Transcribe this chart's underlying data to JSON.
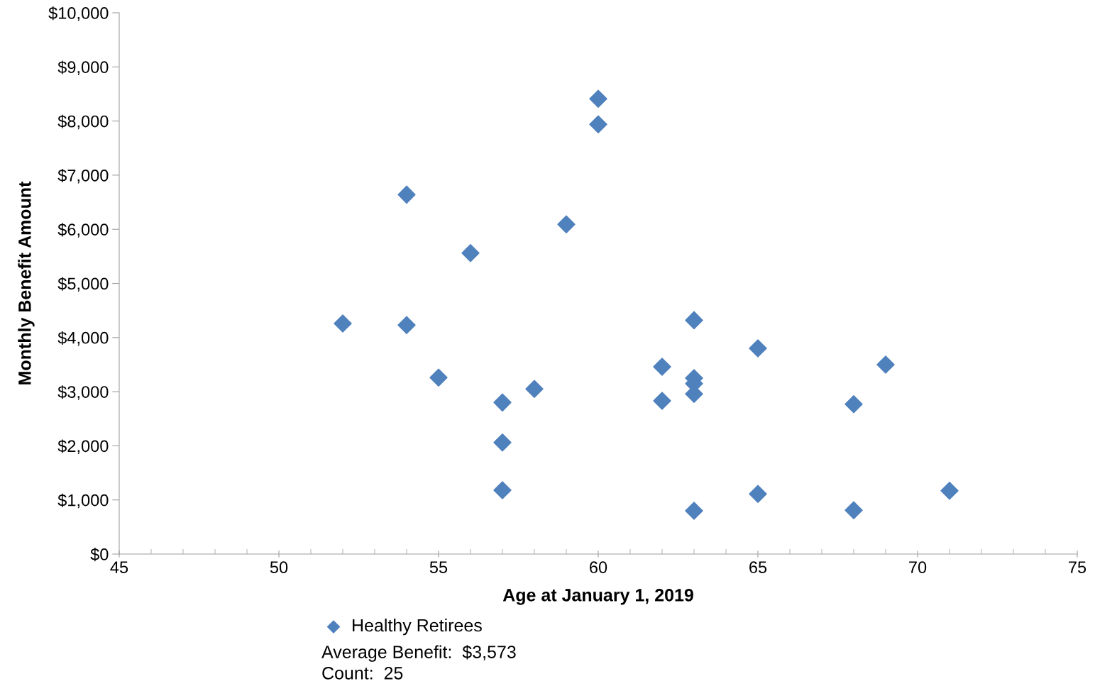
{
  "chart_data": {
    "type": "scatter",
    "xlabel": "Age at January 1, 2019",
    "ylabel": "Monthly Benefit Amount",
    "series": [
      {
        "name": "Healthy Retirees",
        "color": "#4f81bd",
        "marker": "diamond",
        "x": [
          52,
          54,
          54,
          55,
          56,
          57,
          57,
          57,
          58,
          59,
          60,
          60,
          62,
          62,
          63,
          63,
          63,
          63,
          63,
          65,
          65,
          68,
          68,
          69,
          71
        ],
        "values": [
          4260,
          6640,
          4230,
          3260,
          5560,
          2800,
          2060,
          1180,
          3050,
          6090,
          8410,
          7940,
          3460,
          2830,
          4320,
          3250,
          3150,
          2960,
          800,
          3800,
          1110,
          2770,
          810,
          3500,
          1170
        ]
      }
    ],
    "xlim": [
      45,
      75
    ],
    "xticks": [
      45,
      50,
      55,
      60,
      65,
      70,
      75
    ],
    "ylim": [
      0,
      10000
    ],
    "yticks": [
      {
        "value": 0,
        "label": "$0"
      },
      {
        "value": 1000,
        "label": "$1,000"
      },
      {
        "value": 2000,
        "label": "$2,000"
      },
      {
        "value": 3000,
        "label": "$3,000"
      },
      {
        "value": 4000,
        "label": "$4,000"
      },
      {
        "value": 5000,
        "label": "$5,000"
      },
      {
        "value": 6000,
        "label": "$6,000"
      },
      {
        "value": 7000,
        "label": "$7,000"
      },
      {
        "value": 8000,
        "label": "$8,000"
      },
      {
        "value": 9000,
        "label": "$9,000"
      },
      {
        "value": 10000,
        "label": "$10,000"
      }
    ],
    "grid": false,
    "legend": "bottom",
    "annotations": [
      "Average Benefit:  $3,573",
      "Count:  25"
    ]
  }
}
